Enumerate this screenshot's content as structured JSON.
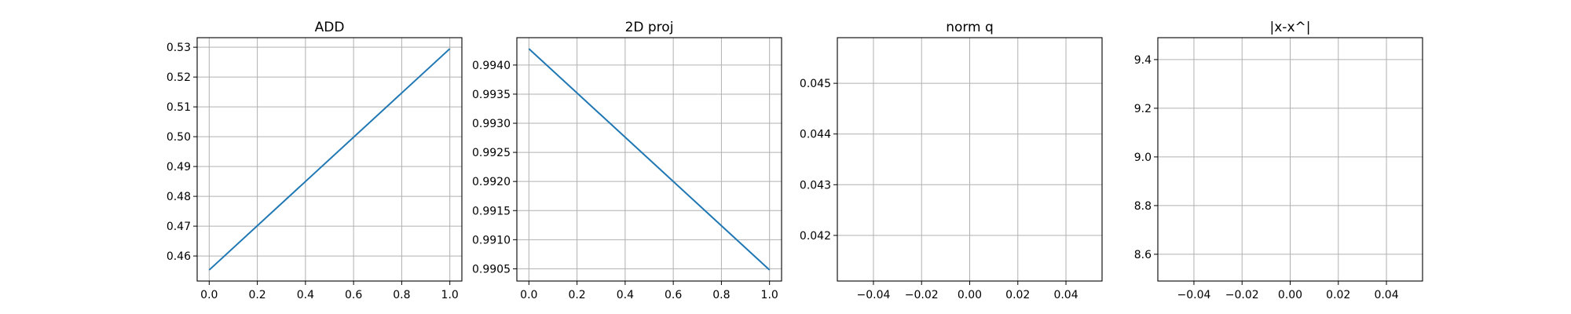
{
  "figure": {
    "background": "#ffffff",
    "grid_color": "#b0b0b0",
    "line_color": "#1f77b4"
  },
  "chart_data": [
    {
      "type": "line",
      "title": "ADD",
      "xlabel": "",
      "ylabel": "",
      "grid": true,
      "x": [
        0.0,
        1.0
      ],
      "series": [
        {
          "values": [
            0.4553,
            0.5295
          ]
        }
      ],
      "xlim": [
        -0.05,
        1.05
      ],
      "ylim": [
        0.4516,
        0.5332
      ],
      "xticks": [
        0.0,
        0.2,
        0.4,
        0.6,
        0.8,
        1.0
      ],
      "xtick_labels": [
        "0.0",
        "0.2",
        "0.4",
        "0.6",
        "0.8",
        "1.0"
      ],
      "yticks": [
        0.46,
        0.47,
        0.48,
        0.49,
        0.5,
        0.51,
        0.52,
        0.53
      ],
      "ytick_labels": [
        "0.46",
        "0.47",
        "0.48",
        "0.49",
        "0.50",
        "0.51",
        "0.52",
        "0.53"
      ]
    },
    {
      "type": "line",
      "title": "2D proj",
      "xlabel": "",
      "ylabel": "",
      "grid": true,
      "x": [
        0.0,
        1.0
      ],
      "series": [
        {
          "values": [
            0.99428,
            0.99048
          ]
        }
      ],
      "xlim": [
        -0.05,
        1.05
      ],
      "ylim": [
        0.99029,
        0.99447
      ],
      "xticks": [
        0.0,
        0.2,
        0.4,
        0.6,
        0.8,
        1.0
      ],
      "xtick_labels": [
        "0.0",
        "0.2",
        "0.4",
        "0.6",
        "0.8",
        "1.0"
      ],
      "yticks": [
        0.9905,
        0.991,
        0.9915,
        0.992,
        0.9925,
        0.993,
        0.9935,
        0.994
      ],
      "ytick_labels": [
        "0.9905",
        "0.9910",
        "0.9915",
        "0.9920",
        "0.9925",
        "0.9930",
        "0.9935",
        "0.9940"
      ]
    },
    {
      "type": "line",
      "title": "norm q",
      "xlabel": "",
      "ylabel": "",
      "grid": true,
      "x": [],
      "series": [],
      "xlim": [
        -0.055,
        0.055
      ],
      "ylim": [
        0.0411,
        0.0459
      ],
      "xticks": [
        -0.04,
        -0.02,
        0.0,
        0.02,
        0.04
      ],
      "xtick_labels": [
        "−0.04",
        "−0.02",
        "0.00",
        "0.02",
        "0.04"
      ],
      "yticks": [
        0.042,
        0.043,
        0.044,
        0.045
      ],
      "ytick_labels": [
        "0.042",
        "0.043",
        "0.044",
        "0.045"
      ]
    },
    {
      "type": "line",
      "title": "|x-x^|",
      "xlabel": "",
      "ylabel": "",
      "grid": true,
      "x": [],
      "series": [],
      "xlim": [
        -0.055,
        0.055
      ],
      "ylim": [
        8.49,
        9.49
      ],
      "xticks": [
        -0.04,
        -0.02,
        0.0,
        0.02,
        0.04
      ],
      "xtick_labels": [
        "−0.04",
        "−0.02",
        "0.00",
        "0.02",
        "0.04"
      ],
      "yticks": [
        8.6,
        8.8,
        9.0,
        9.2,
        9.4
      ],
      "ytick_labels": [
        "8.6",
        "8.8",
        "9.0",
        "9.2",
        "9.4"
      ]
    }
  ]
}
